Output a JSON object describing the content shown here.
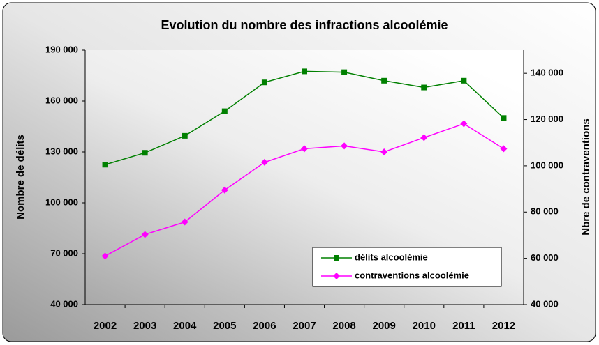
{
  "chart_data": {
    "type": "line",
    "title": "Evolution du nombre des infractions alcoolémie",
    "y_label": "Nombre de délits",
    "y2_label": "Nbre de contraventions",
    "categories": [
      "2002",
      "2003",
      "2004",
      "2005",
      "2006",
      "2007",
      "2008",
      "2009",
      "2010",
      "2011",
      "2012"
    ],
    "series": [
      {
        "name": "délits alcoolémie",
        "color": "#008000",
        "marker": "square",
        "values": [
          122500,
          129500,
          139500,
          154000,
          171000,
          177500,
          177000,
          172000,
          168000,
          172000,
          150000
        ]
      },
      {
        "name": "contraventions alcoolémie",
        "color": "#ff00ff",
        "marker": "diamond",
        "axis": "y2",
        "values": [
          61000,
          70300,
          75700,
          89500,
          101500,
          107400,
          108600,
          106000,
          112200,
          118200,
          107400
        ]
      }
    ],
    "ylim": [
      40000,
      190000
    ],
    "yticks": [
      {
        "value": 40000,
        "label": "40 000"
      },
      {
        "value": 70000,
        "label": "70 000"
      },
      {
        "value": 100000,
        "label": "100 000"
      },
      {
        "value": 130000,
        "label": "130 000"
      },
      {
        "value": 160000,
        "label": "160 000"
      },
      {
        "value": 190000,
        "label": "190 000"
      }
    ],
    "y2lim": [
      40000,
      150000
    ],
    "y2ticks": [
      {
        "value": 40000,
        "label": "40 000"
      },
      {
        "value": 60000,
        "label": "60 000"
      },
      {
        "value": 80000,
        "label": "80 000"
      },
      {
        "value": 100000,
        "label": "100 000"
      },
      {
        "value": 120000,
        "label": "120 000"
      },
      {
        "value": 140000,
        "label": "140 000"
      }
    ],
    "legend": "bottom-right",
    "grid": false
  }
}
